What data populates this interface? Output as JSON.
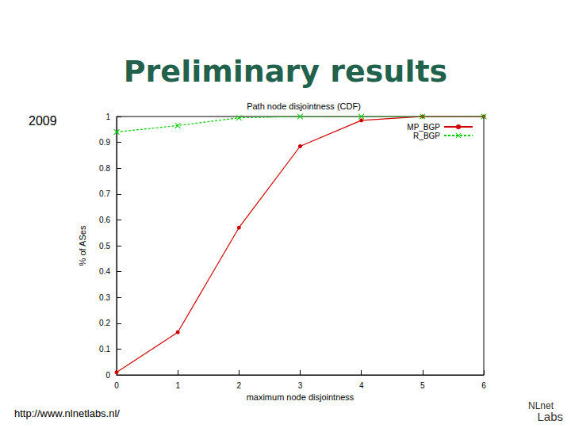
{
  "header": {
    "title": "Preliminary results",
    "side_label": "2009"
  },
  "footer": {
    "url": "http://www.nlnetlabs.nl/",
    "logo": [
      "NLnet",
      "Labs"
    ]
  },
  "chart_data": {
    "type": "line",
    "title": "Path node disjointness (CDF)",
    "x_label": "maximum node disjointness",
    "y_label": "% of ASes",
    "x": [
      0,
      1,
      2,
      3,
      4,
      5,
      6
    ],
    "series": [
      {
        "name": "MP_BGP",
        "color": "#d00000",
        "marker": "circle",
        "line_style": "solid",
        "values": [
          0.01,
          0.165,
          0.57,
          0.885,
          0.985,
          1.0,
          1.0
        ]
      },
      {
        "name": "R_BGP",
        "color": "#00cc00",
        "marker": "x",
        "line_style": "dashed",
        "values": [
          0.94,
          0.965,
          0.995,
          1.0,
          1.0,
          1.0,
          1.0
        ]
      }
    ],
    "xlim": [
      0,
      6
    ],
    "xticks": [
      0,
      1,
      2,
      3,
      4,
      5,
      6
    ],
    "ylim": [
      0,
      1
    ],
    "yticks": [
      0,
      0.1,
      0.2,
      0.3,
      0.4,
      0.5,
      0.6,
      0.7,
      0.8,
      0.9,
      1
    ],
    "grid": false,
    "legend": "top-right"
  }
}
